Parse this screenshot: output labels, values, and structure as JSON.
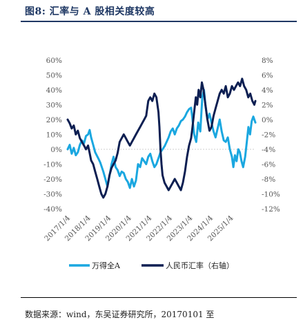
{
  "figure": {
    "title": "图8:  汇率与 A 股相关度较高",
    "source_note": "数据来源：wind，东吴证券研究所，20170101 至"
  },
  "colors": {
    "title": "#1f3864",
    "series_a": "#1aa7e0",
    "series_b": "#0d1f52",
    "grid": "#cccccc"
  },
  "chart_data": {
    "type": "line",
    "x_tick_labels": [
      "2017/1/4",
      "2018/1/4",
      "2019/1/4",
      "2020/1/4",
      "2021/1/4",
      "2022/1/4",
      "2023/1/4",
      "2024/1/4",
      "2025/1/4"
    ],
    "x_range": [
      2017.0,
      2026.2
    ],
    "y_left": {
      "ticks": [
        "60%",
        "50%",
        "40%",
        "30%",
        "20%",
        "10%",
        "0%",
        "-10%",
        "-20%",
        "-30%",
        "-40%"
      ],
      "range": [
        -40,
        60
      ]
    },
    "y_right": {
      "ticks": [
        "8%",
        "6%",
        "4%",
        "2%",
        "0%",
        "-2%",
        "-4%",
        "-6%",
        "-8%",
        "-10%",
        "-12%"
      ],
      "range": [
        -12,
        8
      ]
    },
    "legend_position": "bottom",
    "series": [
      {
        "name": "万得全A",
        "axis": "left",
        "points": [
          [
            2017.0,
            0
          ],
          [
            2017.1,
            3
          ],
          [
            2017.2,
            -3
          ],
          [
            2017.3,
            1
          ],
          [
            2017.4,
            -4
          ],
          [
            2017.5,
            -2
          ],
          [
            2017.6,
            3
          ],
          [
            2017.7,
            6
          ],
          [
            2017.8,
            4
          ],
          [
            2017.9,
            9
          ],
          [
            2018.0,
            10
          ],
          [
            2018.08,
            13
          ],
          [
            2018.15,
            8
          ],
          [
            2018.25,
            3
          ],
          [
            2018.35,
            -2
          ],
          [
            2018.5,
            -6
          ],
          [
            2018.6,
            -9
          ],
          [
            2018.75,
            -15
          ],
          [
            2018.85,
            -20
          ],
          [
            2018.95,
            -25
          ],
          [
            2019.05,
            -18
          ],
          [
            2019.15,
            -10
          ],
          [
            2019.25,
            -5
          ],
          [
            2019.35,
            -12
          ],
          [
            2019.45,
            -14
          ],
          [
            2019.55,
            -18
          ],
          [
            2019.65,
            -15
          ],
          [
            2019.75,
            -16
          ],
          [
            2019.85,
            -20
          ],
          [
            2019.95,
            -22
          ],
          [
            2020.05,
            -26
          ],
          [
            2020.15,
            -20
          ],
          [
            2020.25,
            -25
          ],
          [
            2020.35,
            -21
          ],
          [
            2020.45,
            -10
          ],
          [
            2020.55,
            -12
          ],
          [
            2020.65,
            -6
          ],
          [
            2020.75,
            -8
          ],
          [
            2020.85,
            -10
          ],
          [
            2020.95,
            -5
          ],
          [
            2021.05,
            -3
          ],
          [
            2021.15,
            -8
          ],
          [
            2021.25,
            -12
          ],
          [
            2021.35,
            -10
          ],
          [
            2021.45,
            -6
          ],
          [
            2021.55,
            -2
          ],
          [
            2021.65,
            0
          ],
          [
            2021.75,
            2
          ],
          [
            2021.85,
            5
          ],
          [
            2021.95,
            8
          ],
          [
            2022.05,
            12
          ],
          [
            2022.15,
            14
          ],
          [
            2022.25,
            10
          ],
          [
            2022.35,
            14
          ],
          [
            2022.45,
            16
          ],
          [
            2022.55,
            19
          ],
          [
            2022.65,
            20
          ],
          [
            2022.75,
            22
          ],
          [
            2022.85,
            25
          ],
          [
            2022.95,
            27
          ],
          [
            2023.05,
            28
          ],
          [
            2023.12,
            20
          ],
          [
            2023.2,
            10
          ],
          [
            2023.3,
            5
          ],
          [
            2023.4,
            18
          ],
          [
            2023.5,
            12
          ],
          [
            2023.6,
            35
          ],
          [
            2023.68,
            40
          ],
          [
            2023.75,
            30
          ],
          [
            2023.85,
            20
          ],
          [
            2023.95,
            24
          ],
          [
            2024.05,
            18
          ],
          [
            2024.15,
            12
          ],
          [
            2024.25,
            8
          ],
          [
            2024.35,
            14
          ],
          [
            2024.45,
            20
          ],
          [
            2024.55,
            12
          ],
          [
            2024.65,
            6
          ],
          [
            2024.75,
            5
          ],
          [
            2024.85,
            8
          ],
          [
            2024.95,
            0
          ],
          [
            2025.05,
            -5
          ],
          [
            2025.12,
            -12
          ],
          [
            2025.2,
            -4
          ],
          [
            2025.28,
            -8
          ],
          [
            2025.36,
            0
          ],
          [
            2025.44,
            -2
          ],
          [
            2025.52,
            -8
          ],
          [
            2025.6,
            -12
          ],
          [
            2025.7,
            -5
          ],
          [
            2025.78,
            5
          ],
          [
            2025.86,
            15
          ],
          [
            2025.94,
            10
          ],
          [
            2026.02,
            19
          ],
          [
            2026.1,
            22
          ],
          [
            2026.2,
            18
          ]
        ]
      },
      {
        "name": "人民币汇率（右轴）",
        "axis": "right",
        "points": [
          [
            2017.0,
            0
          ],
          [
            2017.1,
            -0.5
          ],
          [
            2017.2,
            -1.2
          ],
          [
            2017.3,
            -0.8
          ],
          [
            2017.4,
            -2.0
          ],
          [
            2017.5,
            -1.5
          ],
          [
            2017.6,
            -2.5
          ],
          [
            2017.7,
            -3.0
          ],
          [
            2017.8,
            -3.5
          ],
          [
            2017.9,
            -4.0
          ],
          [
            2018.0,
            -3.5
          ],
          [
            2018.08,
            -4.5
          ],
          [
            2018.15,
            -5.5
          ],
          [
            2018.25,
            -6.0
          ],
          [
            2018.35,
            -7.0
          ],
          [
            2018.45,
            -8.0
          ],
          [
            2018.55,
            -9.0
          ],
          [
            2018.65,
            -10.0
          ],
          [
            2018.75,
            -10.5
          ],
          [
            2018.85,
            -10.0
          ],
          [
            2018.95,
            -9.0
          ],
          [
            2019.05,
            -7.5
          ],
          [
            2019.15,
            -6.5
          ],
          [
            2019.25,
            -6.0
          ],
          [
            2019.35,
            -5.5
          ],
          [
            2019.45,
            -4.5
          ],
          [
            2019.55,
            -3.0
          ],
          [
            2019.65,
            -2.5
          ],
          [
            2019.75,
            -2.0
          ],
          [
            2019.85,
            -2.5
          ],
          [
            2019.95,
            -3.0
          ],
          [
            2020.05,
            -3.5
          ],
          [
            2020.15,
            -3.0
          ],
          [
            2020.25,
            -2.5
          ],
          [
            2020.35,
            -2.0
          ],
          [
            2020.45,
            -1.5
          ],
          [
            2020.55,
            -1.0
          ],
          [
            2020.65,
            -0.5
          ],
          [
            2020.75,
            0.0
          ],
          [
            2020.85,
            0.5
          ],
          [
            2020.95,
            2.5
          ],
          [
            2021.05,
            3.0
          ],
          [
            2021.15,
            2.5
          ],
          [
            2021.25,
            3.5
          ],
          [
            2021.35,
            3.0
          ],
          [
            2021.45,
            1.0
          ],
          [
            2021.5,
            -1.0
          ],
          [
            2021.55,
            -4.0
          ],
          [
            2021.6,
            -6.0
          ],
          [
            2021.65,
            -7.5
          ],
          [
            2021.75,
            -8.5
          ],
          [
            2021.85,
            -9.0
          ],
          [
            2021.95,
            -9.5
          ],
          [
            2022.05,
            -9.0
          ],
          [
            2022.15,
            -8.5
          ],
          [
            2022.25,
            -8.0
          ],
          [
            2022.35,
            -8.5
          ],
          [
            2022.45,
            -9.0
          ],
          [
            2022.55,
            -9.5
          ],
          [
            2022.65,
            -8.5
          ],
          [
            2022.75,
            -7.0
          ],
          [
            2022.85,
            -5.0
          ],
          [
            2022.95,
            -3.5
          ],
          [
            2023.05,
            -2.5
          ],
          [
            2023.12,
            -1.0
          ],
          [
            2023.2,
            1.0
          ],
          [
            2023.28,
            3.0
          ],
          [
            2023.35,
            2.0
          ],
          [
            2023.42,
            4.0
          ],
          [
            2023.5,
            3.0
          ],
          [
            2023.58,
            5.0
          ],
          [
            2023.66,
            4.0
          ],
          [
            2023.75,
            2.0
          ],
          [
            2023.85,
            0.0
          ],
          [
            2023.95,
            -1.5
          ],
          [
            2024.05,
            -1.0
          ],
          [
            2024.15,
            0.5
          ],
          [
            2024.25,
            1.5
          ],
          [
            2024.35,
            2.5
          ],
          [
            2024.45,
            3.5
          ],
          [
            2024.55,
            4.0
          ],
          [
            2024.65,
            3.5
          ],
          [
            2024.75,
            4.5
          ],
          [
            2024.85,
            3.0
          ],
          [
            2024.95,
            3.5
          ],
          [
            2025.05,
            4.5
          ],
          [
            2025.15,
            4.0
          ],
          [
            2025.25,
            4.5
          ],
          [
            2025.35,
            5.0
          ],
          [
            2025.45,
            4.5
          ],
          [
            2025.55,
            5.5
          ],
          [
            2025.65,
            4.5
          ],
          [
            2025.75,
            4.0
          ],
          [
            2025.85,
            3.0
          ],
          [
            2025.95,
            3.5
          ],
          [
            2026.05,
            2.5
          ],
          [
            2026.15,
            2.0
          ],
          [
            2026.2,
            2.5
          ]
        ]
      }
    ]
  }
}
